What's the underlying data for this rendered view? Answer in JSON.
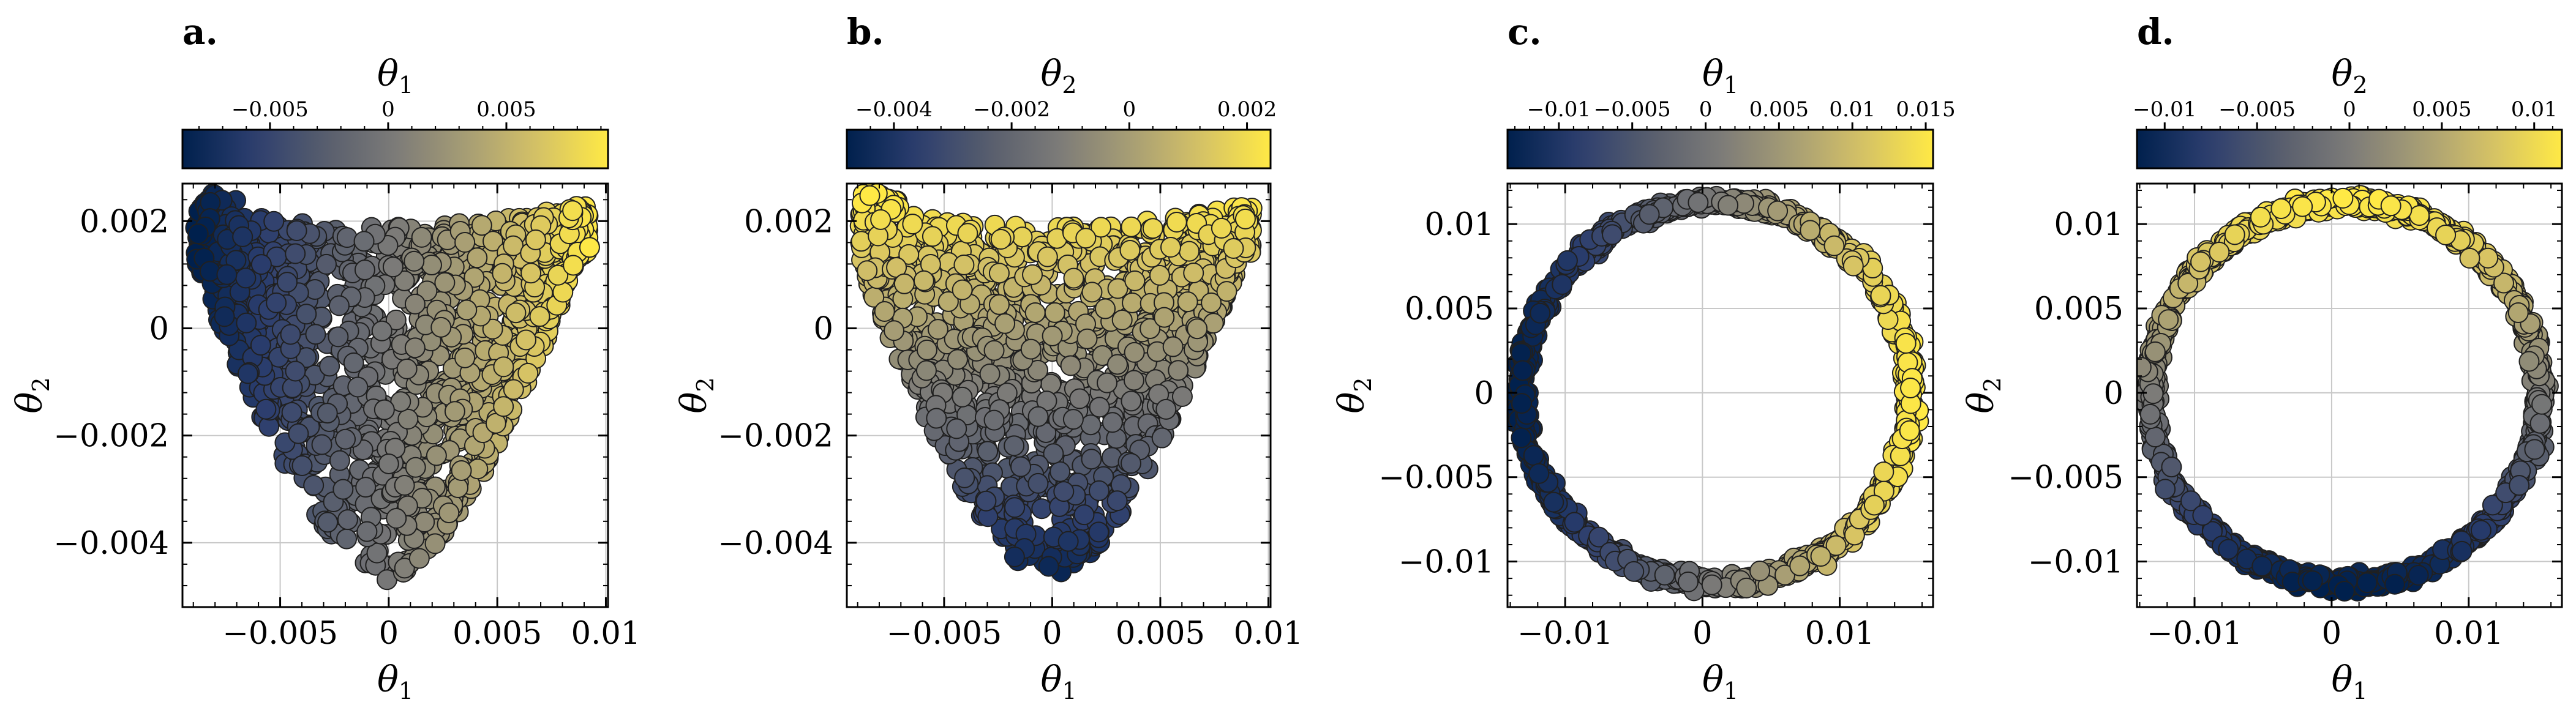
{
  "colors": {
    "cmap": [
      "#00204d",
      "#2c3e6e",
      "#575d6d",
      "#7c7b78",
      "#a69d75",
      "#d4c166",
      "#ffe945"
    ],
    "grid": "#c8c8c8",
    "marker_edge": "#202020"
  },
  "chart_data": [
    {
      "panel": "a.",
      "type": "scatter",
      "xlabel": "θ1",
      "ylabel": "θ2",
      "colorbar_label": "θ1",
      "color_by": "x",
      "shape": "funnel",
      "n_points": 1400,
      "xlim": [
        -0.0095,
        0.0101
      ],
      "ylim": [
        -0.0052,
        0.0027
      ],
      "xticks": [
        -0.005,
        0,
        0.005,
        0.01
      ],
      "xtick_labels": [
        "−0.005",
        "0",
        "0.005",
        "0.01"
      ],
      "yticks": [
        -0.004,
        -0.002,
        0,
        0.002
      ],
      "ytick_labels": [
        "−0.004",
        "−0.002",
        "0",
        "0.002"
      ],
      "colorbar_range": [
        -0.0087,
        0.0093
      ],
      "colorbar_ticks": [
        -0.005,
        0,
        0.005
      ],
      "colorbar_tick_labels": [
        "−0.005",
        "0",
        "0.005"
      ],
      "grid": true
    },
    {
      "panel": "b.",
      "type": "scatter",
      "xlabel": "θ1",
      "ylabel": "θ2",
      "colorbar_label": "θ2",
      "color_by": "y",
      "shape": "funnel",
      "n_points": 1400,
      "xlim": [
        -0.0095,
        0.0101
      ],
      "ylim": [
        -0.0052,
        0.0027
      ],
      "xticks": [
        -0.005,
        0,
        0.005,
        0.01
      ],
      "xtick_labels": [
        "−0.005",
        "0",
        "0.005",
        "0.01"
      ],
      "yticks": [
        -0.004,
        -0.002,
        0,
        0.002
      ],
      "ytick_labels": [
        "−0.004",
        "−0.002",
        "0",
        "0.002"
      ],
      "colorbar_range": [
        -0.0048,
        0.0024
      ],
      "colorbar_ticks": [
        -0.004,
        -0.002,
        0,
        0.002
      ],
      "colorbar_tick_labels": [
        "−0.004",
        "−0.002",
        "0",
        "0.002"
      ],
      "grid": true
    },
    {
      "panel": "c.",
      "type": "scatter",
      "xlabel": "θ1",
      "ylabel": "θ2",
      "colorbar_label": "θ1",
      "color_by": "x",
      "shape": "ring",
      "ring": {
        "cx": 0.001,
        "cy": 0,
        "rx": 0.0142,
        "ry": 0.0113
      },
      "n_points": 1100,
      "xlim": [
        -0.0142,
        0.0168
      ],
      "ylim": [
        -0.0127,
        0.0124
      ],
      "xticks": [
        -0.01,
        0,
        0.01
      ],
      "xtick_labels": [
        "−0.01",
        "0",
        "0.01"
      ],
      "yticks": [
        -0.01,
        -0.005,
        0,
        0.005,
        0.01
      ],
      "ytick_labels": [
        "−0.01",
        "−0.005",
        "0",
        "0.005",
        "0.01"
      ],
      "colorbar_range": [
        -0.0135,
        0.0155
      ],
      "colorbar_ticks": [
        -0.01,
        -0.005,
        0,
        0.005,
        0.01,
        0.015
      ],
      "colorbar_tick_labels": [
        "−0.01",
        "−0.005",
        "0",
        "0.005",
        "0.01",
        "0.015"
      ],
      "grid": true
    },
    {
      "panel": "d.",
      "type": "scatter",
      "xlabel": "θ1",
      "ylabel": "θ2",
      "colorbar_label": "θ2",
      "color_by": "y",
      "shape": "ring",
      "ring": {
        "cx": 0.001,
        "cy": 0,
        "rx": 0.0142,
        "ry": 0.0113
      },
      "n_points": 1100,
      "xlim": [
        -0.0142,
        0.0168
      ],
      "ylim": [
        -0.0127,
        0.0124
      ],
      "xticks": [
        -0.01,
        0,
        0.01
      ],
      "xtick_labels": [
        "−0.01",
        "0",
        "0.01"
      ],
      "yticks": [
        -0.01,
        -0.005,
        0,
        0.005,
        0.01
      ],
      "ytick_labels": [
        "−0.01",
        "−0.005",
        "0",
        "0.005",
        "0.01"
      ],
      "colorbar_range": [
        -0.0115,
        0.0115
      ],
      "colorbar_ticks": [
        -0.01,
        -0.005,
        0,
        0.005,
        0.01
      ],
      "colorbar_tick_labels": [
        "−0.01",
        "−0.005",
        "0",
        "0.005",
        "0.01"
      ],
      "grid": true
    }
  ]
}
